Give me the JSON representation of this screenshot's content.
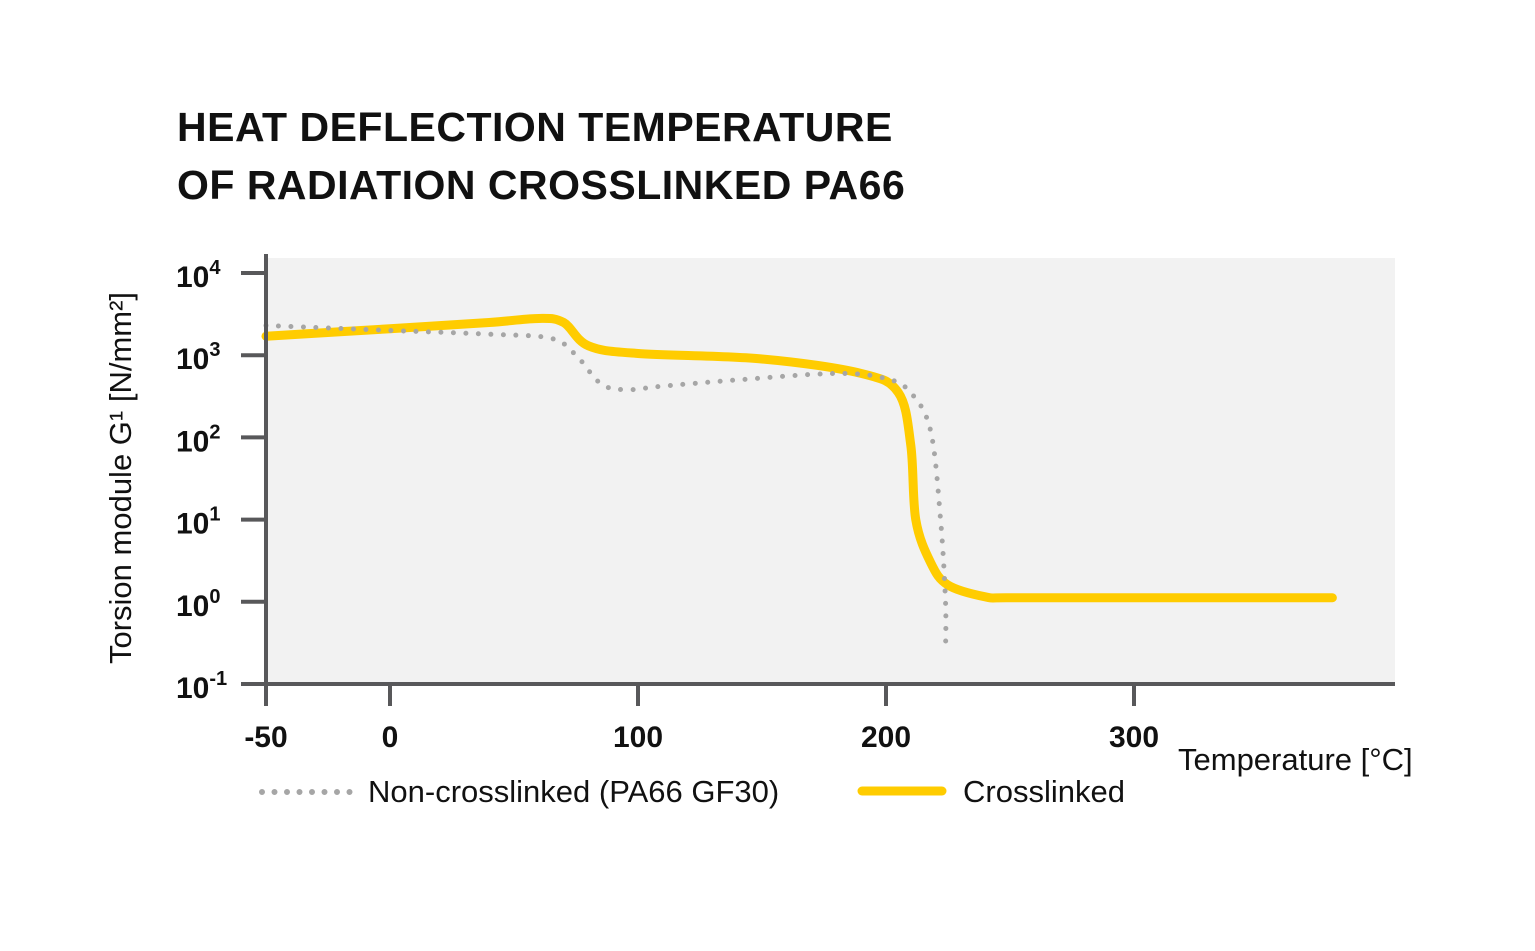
{
  "chart_data": {
    "type": "line",
    "title": "HEAT DEFLECTION TEMPERATURE OF RADIATION CROSSLINKED PA66",
    "title_lines": [
      "HEAT DEFLECTION TEMPERATURE",
      "OF RADIATION CROSSLINKED PA66"
    ],
    "xlabel": "Temperature [°C]",
    "ylabel": "Torsion module G¹ [N/mm²]",
    "xlim": [
      -50,
      380
    ],
    "ylim": [
      0.1,
      20000
    ],
    "yscale": "log",
    "x_ticks": [
      "-50",
      "0",
      "100",
      "200",
      "300"
    ],
    "y_ticks": [
      {
        "base": "10",
        "exp": "4"
      },
      {
        "base": "10",
        "exp": "3"
      },
      {
        "base": "10",
        "exp": "2"
      },
      {
        "base": "10",
        "exp": "1"
      },
      {
        "base": "10",
        "exp": "0"
      },
      {
        "base": "10",
        "exp": "-1"
      }
    ],
    "grid": false,
    "legend_position": "bottom",
    "series": [
      {
        "name": "Non-crosslinked (PA66 GF30)",
        "style": "dotted",
        "color": "#a6a6a6",
        "x": [
          -50,
          0,
          40,
          65,
          75,
          85,
          95,
          110,
          140,
          180,
          200,
          210,
          218,
          222,
          224,
          224
        ],
        "y": [
          2300,
          2000,
          1800,
          1600,
          1000,
          450,
          380,
          420,
          500,
          600,
          520,
          350,
          120,
          10,
          1,
          0.25
        ]
      },
      {
        "name": "Crosslinked",
        "style": "solid",
        "color": "#ffcc00",
        "x": [
          -50,
          0,
          40,
          60,
          70,
          80,
          100,
          150,
          190,
          205,
          210,
          212,
          218,
          225,
          240,
          250,
          300,
          380
        ],
        "y": [
          1700,
          2100,
          2500,
          2800,
          2500,
          1300,
          1050,
          900,
          600,
          350,
          80,
          10,
          3,
          1.6,
          1.15,
          1.12,
          1.12,
          1.12
        ]
      }
    ]
  },
  "colors": {
    "plot_background": "#f2f2f2",
    "axis": "#58585a",
    "crosslinked": "#ffcc00",
    "non_crosslinked": "#a6a6a6"
  }
}
